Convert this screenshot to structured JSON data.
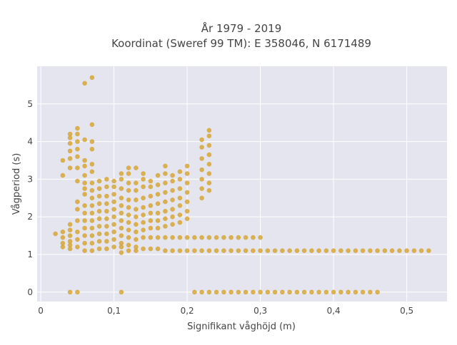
{
  "chart_data": {
    "type": "scatter",
    "title_line1": "År 1979 - 2019",
    "title_line2": "Koordinat (Sweref 99 TM): E 358046, N 6171489",
    "xlabel": "Signifikant våghöjd (m)",
    "ylabel": "Vågperiod (s)",
    "xlim": [
      -0.005,
      0.555
    ],
    "ylim": [
      -0.25,
      6.0
    ],
    "x_ticks": [
      {
        "value": 0.0,
        "label": "0"
      },
      {
        "value": 0.1,
        "label": "0,1"
      },
      {
        "value": 0.2,
        "label": "0,2"
      },
      {
        "value": 0.3,
        "label": "0,3"
      },
      {
        "value": 0.4,
        "label": "0,4"
      },
      {
        "value": 0.5,
        "label": "0,5"
      }
    ],
    "y_ticks": [
      {
        "value": 0,
        "label": "0"
      },
      {
        "value": 1,
        "label": "1"
      },
      {
        "value": 2,
        "label": "2"
      },
      {
        "value": 3,
        "label": "3"
      },
      {
        "value": 4,
        "label": "4"
      },
      {
        "value": 5,
        "label": "5"
      }
    ],
    "grid": true,
    "plot_background": "#e5e5ef",
    "marker_color": "#d4a22a",
    "series": [
      {
        "points": [
          [
            0.02,
            1.55
          ],
          [
            0.03,
            1.2
          ],
          [
            0.03,
            1.3
          ],
          [
            0.03,
            1.45
          ],
          [
            0.03,
            1.6
          ],
          [
            0.03,
            3.1
          ],
          [
            0.03,
            3.5
          ],
          [
            0.04,
            1.15
          ],
          [
            0.04,
            1.25
          ],
          [
            0.04,
            1.35
          ],
          [
            0.04,
            1.5
          ],
          [
            0.04,
            1.65
          ],
          [
            0.04,
            1.8
          ],
          [
            0.04,
            3.3
          ],
          [
            0.04,
            3.55
          ],
          [
            0.04,
            3.75
          ],
          [
            0.04,
            3.95
          ],
          [
            0.04,
            4.1
          ],
          [
            0.04,
            4.2
          ],
          [
            0.04,
            0.0
          ],
          [
            0.05,
            1.2
          ],
          [
            0.05,
            1.4
          ],
          [
            0.05,
            1.6
          ],
          [
            0.05,
            1.9
          ],
          [
            0.05,
            2.2
          ],
          [
            0.05,
            2.4
          ],
          [
            0.05,
            2.95
          ],
          [
            0.05,
            3.3
          ],
          [
            0.05,
            3.6
          ],
          [
            0.05,
            3.8
          ],
          [
            0.05,
            4.0
          ],
          [
            0.05,
            4.2
          ],
          [
            0.05,
            4.35
          ],
          [
            0.05,
            0.0
          ],
          [
            0.06,
            1.1
          ],
          [
            0.06,
            1.3
          ],
          [
            0.06,
            1.5
          ],
          [
            0.06,
            1.7
          ],
          [
            0.06,
            1.9
          ],
          [
            0.06,
            2.1
          ],
          [
            0.06,
            2.3
          ],
          [
            0.06,
            2.6
          ],
          [
            0.06,
            2.75
          ],
          [
            0.06,
            2.9
          ],
          [
            0.06,
            3.1
          ],
          [
            0.06,
            3.35
          ],
          [
            0.06,
            3.5
          ],
          [
            0.06,
            4.05
          ],
          [
            0.06,
            5.55
          ],
          [
            0.07,
            1.1
          ],
          [
            0.07,
            1.3
          ],
          [
            0.07,
            1.5
          ],
          [
            0.07,
            1.7
          ],
          [
            0.07,
            1.9
          ],
          [
            0.07,
            2.1
          ],
          [
            0.07,
            2.3
          ],
          [
            0.07,
            2.5
          ],
          [
            0.07,
            2.7
          ],
          [
            0.07,
            2.9
          ],
          [
            0.07,
            3.2
          ],
          [
            0.07,
            3.4
          ],
          [
            0.07,
            3.8
          ],
          [
            0.07,
            4.0
          ],
          [
            0.07,
            4.45
          ],
          [
            0.07,
            5.7
          ],
          [
            0.08,
            1.15
          ],
          [
            0.08,
            1.35
          ],
          [
            0.08,
            1.55
          ],
          [
            0.08,
            1.75
          ],
          [
            0.08,
            1.95
          ],
          [
            0.08,
            2.15
          ],
          [
            0.08,
            2.35
          ],
          [
            0.08,
            2.55
          ],
          [
            0.08,
            2.75
          ],
          [
            0.08,
            2.95
          ],
          [
            0.09,
            1.15
          ],
          [
            0.09,
            1.35
          ],
          [
            0.09,
            1.55
          ],
          [
            0.09,
            1.75
          ],
          [
            0.09,
            1.95
          ],
          [
            0.09,
            2.15
          ],
          [
            0.09,
            2.35
          ],
          [
            0.09,
            2.55
          ],
          [
            0.09,
            2.8
          ],
          [
            0.09,
            3.0
          ],
          [
            0.1,
            1.2
          ],
          [
            0.1,
            1.4
          ],
          [
            0.1,
            1.6
          ],
          [
            0.1,
            1.8
          ],
          [
            0.1,
            2.0
          ],
          [
            0.1,
            2.2
          ],
          [
            0.1,
            2.4
          ],
          [
            0.1,
            2.6
          ],
          [
            0.1,
            2.8
          ],
          [
            0.1,
            2.95
          ],
          [
            0.11,
            1.05
          ],
          [
            0.11,
            1.2
          ],
          [
            0.11,
            1.3
          ],
          [
            0.11,
            1.5
          ],
          [
            0.11,
            1.7
          ],
          [
            0.11,
            1.9
          ],
          [
            0.11,
            2.1
          ],
          [
            0.11,
            2.3
          ],
          [
            0.11,
            2.5
          ],
          [
            0.11,
            2.75
          ],
          [
            0.11,
            3.0
          ],
          [
            0.11,
            3.15
          ],
          [
            0.11,
            0.0
          ],
          [
            0.12,
            1.1
          ],
          [
            0.12,
            1.25
          ],
          [
            0.12,
            1.45
          ],
          [
            0.12,
            1.65
          ],
          [
            0.12,
            1.85
          ],
          [
            0.12,
            2.05
          ],
          [
            0.12,
            2.25
          ],
          [
            0.12,
            2.45
          ],
          [
            0.12,
            2.7
          ],
          [
            0.12,
            2.9
          ],
          [
            0.12,
            3.15
          ],
          [
            0.12,
            3.3
          ],
          [
            0.13,
            1.1
          ],
          [
            0.13,
            1.2
          ],
          [
            0.13,
            1.4
          ],
          [
            0.13,
            1.6
          ],
          [
            0.13,
            1.8
          ],
          [
            0.13,
            2.0
          ],
          [
            0.13,
            2.2
          ],
          [
            0.13,
            2.45
          ],
          [
            0.13,
            2.7
          ],
          [
            0.13,
            2.9
          ],
          [
            0.13,
            3.3
          ],
          [
            0.14,
            1.15
          ],
          [
            0.14,
            1.45
          ],
          [
            0.14,
            1.65
          ],
          [
            0.14,
            1.85
          ],
          [
            0.14,
            2.05
          ],
          [
            0.14,
            2.25
          ],
          [
            0.14,
            2.5
          ],
          [
            0.14,
            2.8
          ],
          [
            0.14,
            3.0
          ],
          [
            0.14,
            3.15
          ],
          [
            0.15,
            1.15
          ],
          [
            0.15,
            1.45
          ],
          [
            0.15,
            1.7
          ],
          [
            0.15,
            1.9
          ],
          [
            0.15,
            2.1
          ],
          [
            0.15,
            2.3
          ],
          [
            0.15,
            2.55
          ],
          [
            0.15,
            2.8
          ],
          [
            0.15,
            2.95
          ],
          [
            0.16,
            1.15
          ],
          [
            0.16,
            1.45
          ],
          [
            0.16,
            1.7
          ],
          [
            0.16,
            1.9
          ],
          [
            0.16,
            2.1
          ],
          [
            0.16,
            2.35
          ],
          [
            0.16,
            2.6
          ],
          [
            0.16,
            2.85
          ],
          [
            0.16,
            3.1
          ],
          [
            0.17,
            1.1
          ],
          [
            0.17,
            1.45
          ],
          [
            0.17,
            1.75
          ],
          [
            0.17,
            1.95
          ],
          [
            0.17,
            2.15
          ],
          [
            0.17,
            2.4
          ],
          [
            0.17,
            2.65
          ],
          [
            0.17,
            2.9
          ],
          [
            0.17,
            3.15
          ],
          [
            0.17,
            3.35
          ],
          [
            0.18,
            1.1
          ],
          [
            0.18,
            1.45
          ],
          [
            0.18,
            1.8
          ],
          [
            0.18,
            2.0
          ],
          [
            0.18,
            2.2
          ],
          [
            0.18,
            2.45
          ],
          [
            0.18,
            2.7
          ],
          [
            0.18,
            2.95
          ],
          [
            0.18,
            3.1
          ],
          [
            0.19,
            1.1
          ],
          [
            0.19,
            1.45
          ],
          [
            0.19,
            1.85
          ],
          [
            0.19,
            2.05
          ],
          [
            0.19,
            2.3
          ],
          [
            0.19,
            2.5
          ],
          [
            0.19,
            2.75
          ],
          [
            0.19,
            3.0
          ],
          [
            0.19,
            3.2
          ],
          [
            0.2,
            1.1
          ],
          [
            0.2,
            1.45
          ],
          [
            0.2,
            1.95
          ],
          [
            0.2,
            2.15
          ],
          [
            0.2,
            2.4
          ],
          [
            0.2,
            2.65
          ],
          [
            0.2,
            2.9
          ],
          [
            0.2,
            3.15
          ],
          [
            0.2,
            3.35
          ],
          [
            0.21,
            1.1
          ],
          [
            0.21,
            1.45
          ],
          [
            0.21,
            0.0
          ],
          [
            0.22,
            1.1
          ],
          [
            0.22,
            1.45
          ],
          [
            0.22,
            2.5
          ],
          [
            0.22,
            2.75
          ],
          [
            0.22,
            3.0
          ],
          [
            0.22,
            3.25
          ],
          [
            0.22,
            3.55
          ],
          [
            0.22,
            3.85
          ],
          [
            0.22,
            4.05
          ],
          [
            0.22,
            0.0
          ],
          [
            0.23,
            1.1
          ],
          [
            0.23,
            1.45
          ],
          [
            0.23,
            2.7
          ],
          [
            0.23,
            2.9
          ],
          [
            0.23,
            3.15
          ],
          [
            0.23,
            3.4
          ],
          [
            0.23,
            3.65
          ],
          [
            0.23,
            3.9
          ],
          [
            0.23,
            4.15
          ],
          [
            0.23,
            4.3
          ],
          [
            0.23,
            0.0
          ],
          [
            0.24,
            1.1
          ],
          [
            0.24,
            1.45
          ],
          [
            0.24,
            0.0
          ],
          [
            0.25,
            1.1
          ],
          [
            0.25,
            1.45
          ],
          [
            0.25,
            0.0
          ],
          [
            0.26,
            1.1
          ],
          [
            0.26,
            1.45
          ],
          [
            0.26,
            0.0
          ],
          [
            0.27,
            1.1
          ],
          [
            0.27,
            1.45
          ],
          [
            0.27,
            0.0
          ],
          [
            0.28,
            1.1
          ],
          [
            0.28,
            1.45
          ],
          [
            0.28,
            0.0
          ],
          [
            0.29,
            1.1
          ],
          [
            0.29,
            1.45
          ],
          [
            0.29,
            0.0
          ],
          [
            0.3,
            1.1
          ],
          [
            0.3,
            1.45
          ],
          [
            0.3,
            0.0
          ],
          [
            0.31,
            1.1
          ],
          [
            0.31,
            0.0
          ],
          [
            0.32,
            1.1
          ],
          [
            0.32,
            0.0
          ],
          [
            0.33,
            1.1
          ],
          [
            0.33,
            0.0
          ],
          [
            0.34,
            1.1
          ],
          [
            0.34,
            0.0
          ],
          [
            0.35,
            1.1
          ],
          [
            0.35,
            0.0
          ],
          [
            0.36,
            1.1
          ],
          [
            0.36,
            0.0
          ],
          [
            0.37,
            1.1
          ],
          [
            0.37,
            0.0
          ],
          [
            0.38,
            1.1
          ],
          [
            0.38,
            0.0
          ],
          [
            0.39,
            1.1
          ],
          [
            0.39,
            0.0
          ],
          [
            0.4,
            1.1
          ],
          [
            0.4,
            0.0
          ],
          [
            0.41,
            1.1
          ],
          [
            0.41,
            0.0
          ],
          [
            0.42,
            1.1
          ],
          [
            0.42,
            0.0
          ],
          [
            0.43,
            1.1
          ],
          [
            0.43,
            0.0
          ],
          [
            0.44,
            1.1
          ],
          [
            0.44,
            0.0
          ],
          [
            0.45,
            1.1
          ],
          [
            0.45,
            0.0
          ],
          [
            0.46,
            1.1
          ],
          [
            0.46,
            0.0
          ],
          [
            0.47,
            1.1
          ],
          [
            0.48,
            1.1
          ],
          [
            0.49,
            1.1
          ],
          [
            0.5,
            1.1
          ],
          [
            0.51,
            1.1
          ],
          [
            0.52,
            1.1
          ],
          [
            0.53,
            1.1
          ]
        ]
      }
    ]
  }
}
